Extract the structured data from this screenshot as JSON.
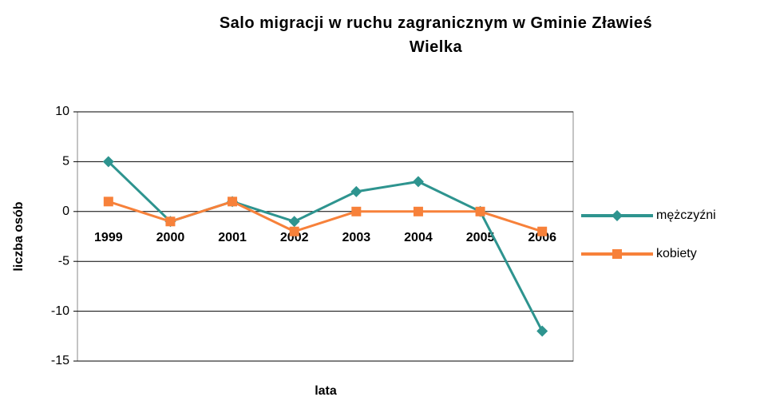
{
  "chart_data": {
    "type": "line",
    "title": "Salo migracji w ruchu zagranicznym w Gminie Zławieś Wielka",
    "xlabel": "lata",
    "ylabel": "liczba osób",
    "categories": [
      "1999",
      "2000",
      "2001",
      "2002",
      "2003",
      "2004",
      "2005",
      "2006"
    ],
    "series": [
      {
        "name": "mężczyźni",
        "color": "#2e948f",
        "marker": "diamond",
        "values": [
          5,
          -1,
          1,
          -1,
          2,
          3,
          0,
          -12
        ]
      },
      {
        "name": "kobiety",
        "color": "#f7813a",
        "marker": "square",
        "values": [
          1,
          -1,
          1,
          -2,
          0,
          0,
          0,
          -2
        ]
      }
    ],
    "ylim": [
      -15,
      10
    ],
    "yticks": [
      -15,
      -10,
      -5,
      0,
      5,
      10
    ],
    "grid": true,
    "legend": "right"
  }
}
